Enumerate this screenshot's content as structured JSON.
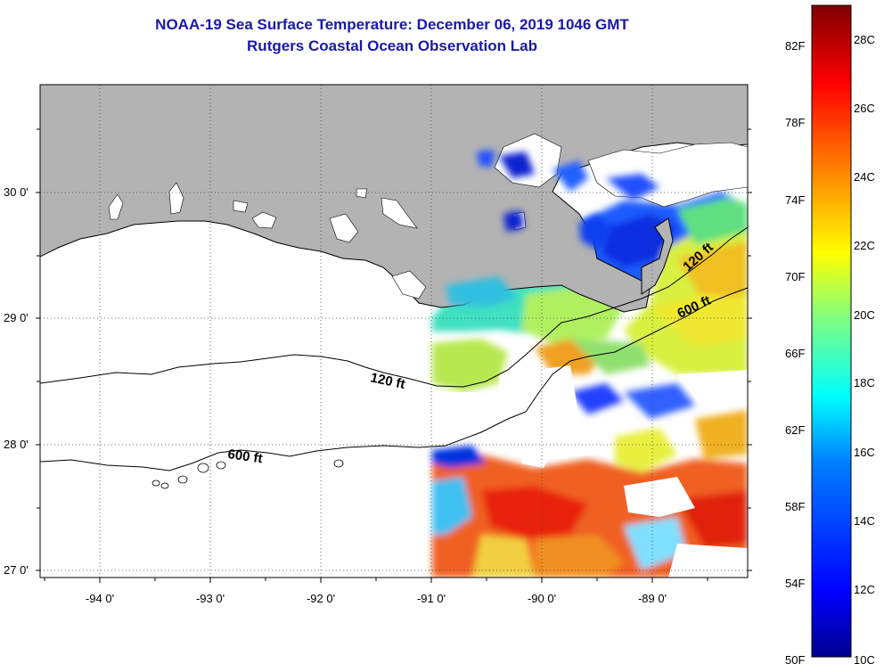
{
  "title": {
    "line1": "NOAA-19 Sea Surface Temperature:  December 06, 2019 1046 GMT",
    "line2": "Rutgers Coastal Ocean Observation Lab"
  },
  "map": {
    "lon_range": [
      -94.6,
      -88.2
    ],
    "lat_range": [
      26.95,
      30.85
    ],
    "colors": {
      "land": "#b3b3b3",
      "ocean_nodata": "#ffffff",
      "title": "#1a1aa6"
    },
    "lat_ticks": [
      {
        "value": 30,
        "label": "30 0'"
      },
      {
        "value": 29,
        "label": "29 0'"
      },
      {
        "value": 28,
        "label": "28 0'"
      },
      {
        "value": 27,
        "label": "27 0'"
      }
    ],
    "lon_ticks": [
      {
        "value": -94,
        "label": "-94 0'"
      },
      {
        "value": -93,
        "label": "-93 0'"
      },
      {
        "value": -92,
        "label": "-92 0'"
      },
      {
        "value": -91,
        "label": "-91 0'"
      },
      {
        "value": -90,
        "label": "-90 0'"
      },
      {
        "value": -89,
        "label": "-89 0'"
      }
    ],
    "contour_labels": [
      {
        "text": "120 ft"
      },
      {
        "text": "600 ft"
      },
      {
        "text": "120 ft"
      },
      {
        "text": "600 ft"
      }
    ]
  },
  "colorbar": {
    "fahrenheit_labels": [
      "82F",
      "78F",
      "74F",
      "70F",
      "66F",
      "62F",
      "58F",
      "54F",
      "50F"
    ],
    "celsius_labels": [
      "28C",
      "26C",
      "24C",
      "22C",
      "20C",
      "18C",
      "16C",
      "14C",
      "12C",
      "10C"
    ],
    "range_c": [
      10,
      29.5
    ],
    "stops": [
      "#00008f",
      "#0000ff",
      "#0080ff",
      "#00ffff",
      "#80ff80",
      "#ffff00",
      "#ff8000",
      "#ff0000",
      "#800000"
    ]
  }
}
